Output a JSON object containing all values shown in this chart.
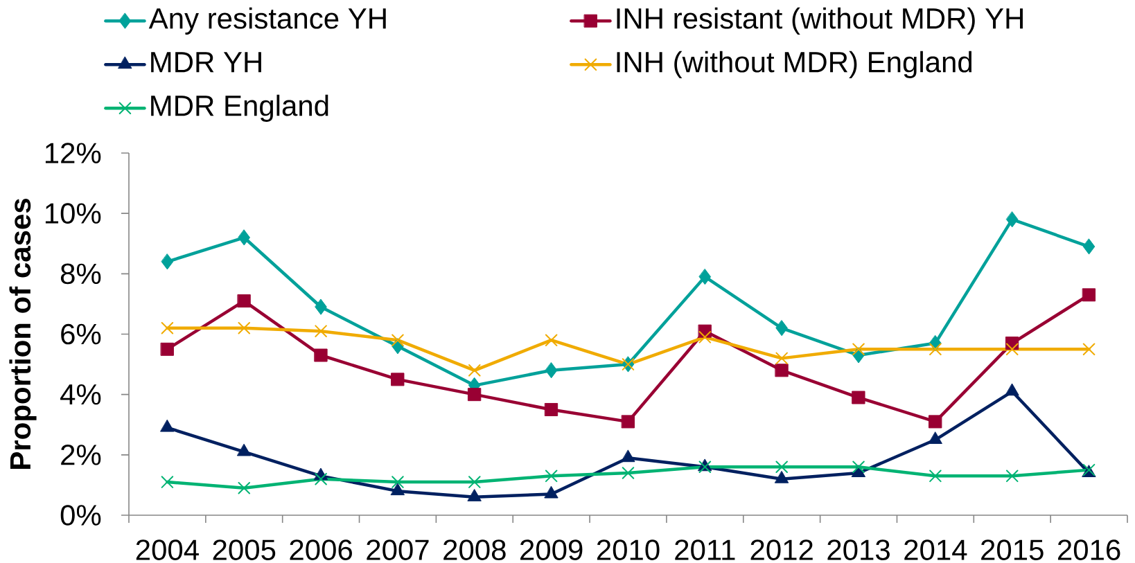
{
  "chart_data": {
    "type": "line",
    "ylabel": "Proportion of cases",
    "categories": [
      "2004",
      "2005",
      "2006",
      "2007",
      "2008",
      "2009",
      "2010",
      "2011",
      "2012",
      "2013",
      "2014",
      "2015",
      "2016"
    ],
    "ylim": [
      0,
      12
    ],
    "yticks": [
      {
        "value": 0,
        "label": "0%"
      },
      {
        "value": 2,
        "label": "2%"
      },
      {
        "value": 4,
        "label": "4%"
      },
      {
        "value": 6,
        "label": "6%"
      },
      {
        "value": 8,
        "label": "8%"
      },
      {
        "value": 10,
        "label": "10%"
      },
      {
        "value": 12,
        "label": "12%"
      }
    ],
    "legend": "top",
    "line_style": "solid",
    "series": [
      {
        "name": "Any resistance YH",
        "color": "#00A19A",
        "marker": "diamond",
        "values": [
          8.4,
          9.2,
          6.9,
          5.6,
          4.3,
          4.8,
          5.0,
          7.9,
          6.2,
          5.3,
          5.7,
          9.8,
          8.9
        ]
      },
      {
        "name": "INH resistant (without MDR) YH",
        "color": "#990033",
        "marker": "square",
        "values": [
          5.5,
          7.1,
          5.3,
          4.5,
          4.0,
          3.5,
          3.1,
          6.1,
          4.8,
          3.9,
          3.1,
          5.7,
          7.3
        ]
      },
      {
        "name": "MDR YH",
        "color": "#002060",
        "marker": "triangle",
        "values": [
          2.9,
          2.1,
          1.3,
          0.8,
          0.6,
          0.7,
          1.9,
          1.6,
          1.2,
          1.4,
          2.5,
          4.1,
          1.4
        ]
      },
      {
        "name": "INH  (without MDR) England",
        "color": "#F0AB00",
        "marker": "cross",
        "values": [
          6.2,
          6.2,
          6.1,
          5.8,
          4.8,
          5.8,
          5.0,
          5.9,
          5.2,
          5.5,
          5.5,
          5.5,
          5.5
        ]
      },
      {
        "name": "MDR England",
        "color": "#00B373",
        "marker": "cross",
        "values": [
          1.1,
          0.9,
          1.2,
          1.1,
          1.1,
          1.3,
          1.4,
          1.6,
          1.6,
          1.6,
          1.3,
          1.3,
          1.5
        ]
      }
    ]
  }
}
